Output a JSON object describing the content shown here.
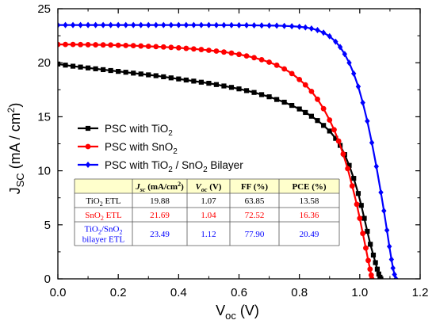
{
  "chart_data": {
    "type": "line",
    "xlabel_main": "V",
    "xlabel_sub": "oc",
    "xlabel_unit": " (V)",
    "ylabel_main": "J",
    "ylabel_sub": "SC",
    "ylabel_unit": " (mA / cm",
    "ylabel_sup": "2",
    "ylabel_close": ")",
    "xlim": [
      0.0,
      1.2
    ],
    "ylim": [
      0,
      25
    ],
    "xticks": [
      "0.0",
      "0.2",
      "0.4",
      "0.6",
      "0.8",
      "1.0",
      "1.2"
    ],
    "yticks": [
      "0",
      "5",
      "10",
      "15",
      "20",
      "25"
    ],
    "grid": false,
    "legend_position": "center-left",
    "series": [
      {
        "legend_parts": [
          "PSC with TiO",
          "2",
          ""
        ],
        "color": "#000000",
        "marker": "square",
        "x": [
          0.0,
          0.025,
          0.05,
          0.075,
          0.1,
          0.125,
          0.15,
          0.175,
          0.2,
          0.225,
          0.25,
          0.275,
          0.3,
          0.325,
          0.35,
          0.375,
          0.4,
          0.425,
          0.45,
          0.475,
          0.5,
          0.525,
          0.55,
          0.575,
          0.6,
          0.625,
          0.65,
          0.675,
          0.7,
          0.725,
          0.75,
          0.775,
          0.8,
          0.82,
          0.84,
          0.86,
          0.88,
          0.9,
          0.92,
          0.935,
          0.95,
          0.965,
          0.98,
          0.995,
          1.005,
          1.015,
          1.025,
          1.035,
          1.045,
          1.052,
          1.058,
          1.063,
          1.067,
          1.07
        ],
        "y": [
          19.88,
          19.78,
          19.68,
          19.6,
          19.52,
          19.44,
          19.36,
          19.28,
          19.2,
          19.12,
          19.04,
          18.96,
          18.88,
          18.8,
          18.7,
          18.6,
          18.5,
          18.4,
          18.3,
          18.2,
          18.1,
          17.98,
          17.85,
          17.72,
          17.58,
          17.42,
          17.25,
          17.05,
          16.85,
          16.6,
          16.35,
          16.05,
          15.72,
          15.4,
          15.05,
          14.65,
          14.2,
          13.68,
          13.0,
          12.35,
          11.5,
          10.5,
          9.3,
          7.9,
          6.8,
          5.6,
          4.4,
          3.2,
          2.2,
          1.5,
          0.9,
          0.45,
          0.15,
          0.0
        ]
      },
      {
        "legend_parts": [
          "PSC with SnO",
          "2",
          ""
        ],
        "color": "#ff0000",
        "marker": "circle",
        "x": [
          0.0,
          0.025,
          0.05,
          0.075,
          0.1,
          0.125,
          0.15,
          0.175,
          0.2,
          0.225,
          0.25,
          0.275,
          0.3,
          0.325,
          0.35,
          0.375,
          0.4,
          0.425,
          0.45,
          0.475,
          0.5,
          0.525,
          0.55,
          0.575,
          0.6,
          0.625,
          0.65,
          0.675,
          0.7,
          0.725,
          0.75,
          0.775,
          0.8,
          0.82,
          0.84,
          0.86,
          0.88,
          0.9,
          0.915,
          0.93,
          0.945,
          0.96,
          0.975,
          0.99,
          1.0,
          1.01,
          1.02,
          1.028,
          1.034,
          1.038,
          1.04
        ],
        "y": [
          21.69,
          21.69,
          21.69,
          21.68,
          21.67,
          21.66,
          21.65,
          21.64,
          21.62,
          21.6,
          21.58,
          21.55,
          21.52,
          21.49,
          21.46,
          21.42,
          21.38,
          21.33,
          21.28,
          21.22,
          21.15,
          21.08,
          20.99,
          20.89,
          20.77,
          20.63,
          20.47,
          20.28,
          20.05,
          19.77,
          19.43,
          19.0,
          18.45,
          17.95,
          17.35,
          16.62,
          15.75,
          14.7,
          13.8,
          12.75,
          11.55,
          10.2,
          8.6,
          6.9,
          5.6,
          4.2,
          2.85,
          1.7,
          0.9,
          0.35,
          0.0
        ]
      },
      {
        "legend_parts": [
          "PSC with TiO",
          "2",
          " / SnO",
          "2",
          " Bilayer"
        ],
        "color": "#0000ff",
        "marker": "diamond",
        "x": [
          0.0,
          0.025,
          0.05,
          0.075,
          0.1,
          0.125,
          0.15,
          0.175,
          0.2,
          0.225,
          0.25,
          0.275,
          0.3,
          0.325,
          0.35,
          0.375,
          0.4,
          0.425,
          0.45,
          0.475,
          0.5,
          0.525,
          0.55,
          0.575,
          0.6,
          0.625,
          0.65,
          0.675,
          0.7,
          0.725,
          0.75,
          0.775,
          0.8,
          0.82,
          0.84,
          0.86,
          0.88,
          0.9,
          0.92,
          0.935,
          0.95,
          0.965,
          0.98,
          0.995,
          1.01,
          1.025,
          1.04,
          1.055,
          1.07,
          1.08,
          1.09,
          1.098,
          1.105,
          1.11,
          1.115,
          1.12
        ],
        "y": [
          23.49,
          23.49,
          23.49,
          23.49,
          23.49,
          23.49,
          23.49,
          23.49,
          23.49,
          23.49,
          23.49,
          23.49,
          23.49,
          23.49,
          23.49,
          23.49,
          23.49,
          23.49,
          23.49,
          23.49,
          23.49,
          23.48,
          23.48,
          23.48,
          23.47,
          23.47,
          23.46,
          23.45,
          23.44,
          23.43,
          23.41,
          23.38,
          23.33,
          23.27,
          23.17,
          23.02,
          22.78,
          22.45,
          21.95,
          21.45,
          20.8,
          20.0,
          19.0,
          17.8,
          16.3,
          14.6,
          12.6,
          10.4,
          8.0,
          6.3,
          4.5,
          3.0,
          1.8,
          1.0,
          0.4,
          0.0
        ]
      }
    ],
    "table": {
      "headers": [
        {
          "main": "J",
          "sub": "sc",
          "tail": " (mA/cm",
          "sup": "2",
          "end": ")"
        },
        {
          "main": "V",
          "sub": "oc",
          "tail": " (V)",
          "sup": "",
          "end": ""
        },
        {
          "main": "FF (%)",
          "sub": "",
          "tail": "",
          "sup": "",
          "end": ""
        },
        {
          "main": "PCE (%)",
          "sub": "",
          "tail": "",
          "sup": "",
          "end": ""
        }
      ],
      "rows": [
        {
          "label_lines": [
            [
              "TiO",
              "2",
              " ETL"
            ]
          ],
          "color": "#000000",
          "values": [
            "19.88",
            "1.07",
            "63.85",
            "13.58"
          ]
        },
        {
          "label_lines": [
            [
              "SnO",
              "2",
              " ETL"
            ]
          ],
          "color": "#ff0000",
          "values": [
            "21.69",
            "1.04",
            "72.52",
            "16.36"
          ]
        },
        {
          "label_lines": [
            [
              "TiO",
              "2",
              "/SnO",
              "2",
              ""
            ],
            [
              "bilayer ETL"
            ]
          ],
          "color": "#0000ff",
          "values": [
            "23.49",
            "1.12",
            "77.90",
            "20.49"
          ]
        }
      ],
      "header_bg": "#ffffcc"
    }
  }
}
